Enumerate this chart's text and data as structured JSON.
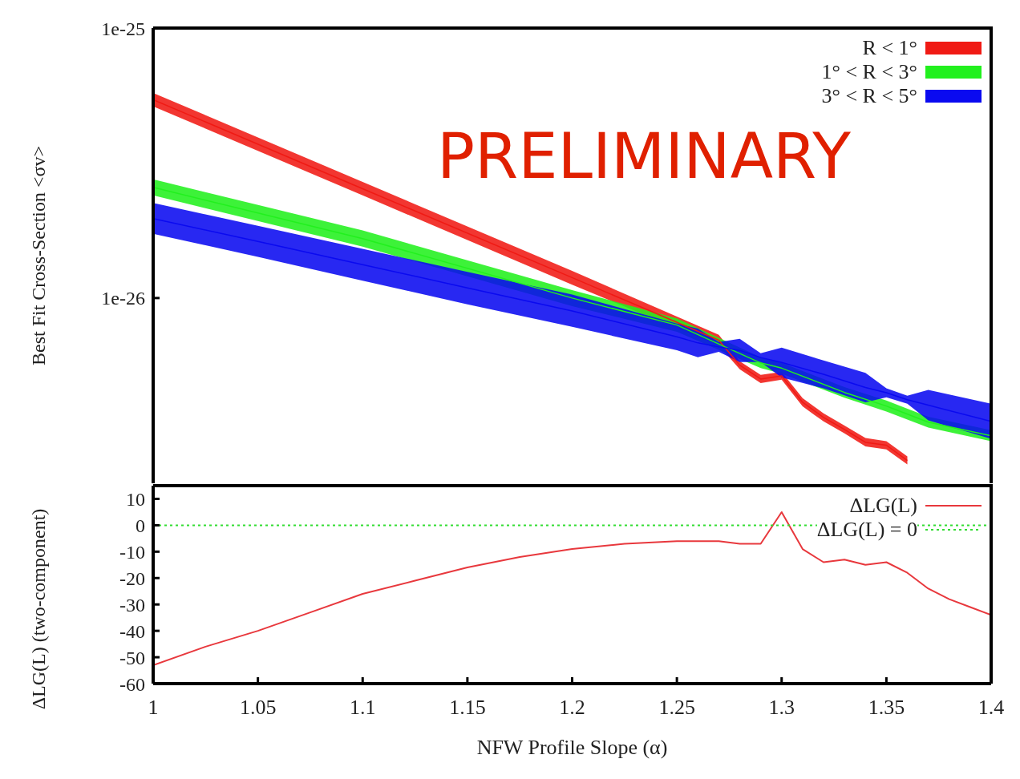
{
  "chart_data": [
    {
      "type": "line",
      "ylabel": "Best Fit Cross-Section <σv>",
      "annotations": [
        "PRELIMINARY"
      ],
      "xlim": [
        1,
        1.4
      ],
      "ylim": [
        2.06e-27,
        1e-25
      ],
      "yticks": [
        {
          "value": 1e-25,
          "label": "1e-25"
        },
        {
          "value": 1e-26,
          "label": "1e-26"
        }
      ],
      "log": "y",
      "tick_labels": "y",
      "legend": "top right",
      "series": [
        {
          "name": "R < 1°",
          "color": "#f01a14",
          "x": [
            1,
            1.1,
            1.2,
            1.27,
            1.28,
            1.29,
            1.3,
            1.31,
            1.32,
            1.33,
            1.34,
            1.35,
            1.36
          ],
          "values": [
            5.43e-26,
            2.54e-26,
            1.19e-26,
            6.98e-27,
            5.64e-27,
            5.01e-27,
            5.15e-27,
            4.11e-27,
            3.61e-27,
            3.26e-27,
            2.92e-27,
            2.85e-27,
            2.5e-27
          ],
          "lower": [
            5.13e-26,
            2.4e-26,
            1.12e-26,
            6.67e-27,
            5.45e-27,
            4.84e-27,
            4.98e-27,
            3.97e-27,
            3.49e-27,
            3.15e-27,
            2.82e-27,
            2.75e-27,
            2.42e-27
          ],
          "upper": [
            5.75e-26,
            2.69e-26,
            1.26e-26,
            7.31e-27,
            5.83e-27,
            5.19e-27,
            5.33e-27,
            4.26e-27,
            3.74e-27,
            3.37e-27,
            3.03e-27,
            2.95e-27,
            2.59e-27
          ]
        },
        {
          "name": "1° < R < 3°",
          "color": "#22f01e",
          "x": [
            1,
            1.1,
            1.2,
            1.25,
            1.29,
            1.3,
            1.33,
            1.35,
            1.37,
            1.4
          ],
          "values": [
            2.57e-26,
            1.66e-26,
            1e-26,
            7.94e-27,
            5.75e-27,
            5.5e-27,
            4.47e-27,
            3.98e-27,
            3.47e-27,
            3.09e-27
          ],
          "lower": [
            2.4e-26,
            1.55e-26,
            9.33e-27,
            7.5e-27,
            5.5e-27,
            5.25e-27,
            4.27e-27,
            3.8e-27,
            3.31e-27,
            2.95e-27
          ],
          "upper": [
            2.75e-26,
            1.78e-26,
            1.07e-26,
            8.41e-27,
            6.03e-27,
            5.75e-27,
            4.68e-27,
            4.17e-27,
            3.63e-27,
            3.24e-27
          ]
        },
        {
          "name": "3° < R < 5°",
          "color": "#0a0af0",
          "x": [
            1,
            1.05,
            1.1,
            1.15,
            1.2,
            1.25,
            1.26,
            1.27,
            1.28,
            1.29,
            1.3,
            1.32,
            1.34,
            1.35,
            1.36,
            1.37,
            1.4
          ],
          "values": [
            1.97e-26,
            1.62e-26,
            1.33e-26,
            1.09e-26,
            8.96e-27,
            7.18e-27,
            6.82e-27,
            6.59e-27,
            6.4e-27,
            6.02e-27,
            5.77e-27,
            5.22e-27,
            4.66e-27,
            4.46e-27,
            4.2e-27,
            4.01e-27,
            3.49e-27
          ],
          "lower": [
            1.73e-26,
            1.42e-26,
            1.16e-26,
            9.48e-27,
            7.82e-27,
            6.41e-27,
            6.03e-27,
            6.32e-27,
            5.79e-27,
            5.79e-27,
            5.08e-27,
            4.63e-27,
            4.11e-27,
            4.29e-27,
            4.06e-27,
            3.52e-27,
            3.01e-27
          ],
          "upper": [
            2.25e-26,
            1.85e-26,
            1.52e-26,
            1.25e-26,
            1.03e-26,
            8.04e-27,
            7.71e-27,
            6.87e-27,
            7.06e-27,
            6.25e-27,
            6.55e-27,
            5.87e-27,
            5.28e-27,
            4.63e-27,
            4.35e-27,
            4.57e-27,
            4.06e-27
          ]
        }
      ]
    },
    {
      "type": "line",
      "xlabel": "NFW Profile Slope (α)",
      "ylabel": "ΔLG(L) (two-component)",
      "xlim": [
        1,
        1.4
      ],
      "xticks": [
        1,
        1.05,
        1.1,
        1.15,
        1.2,
        1.25,
        1.3,
        1.35,
        1.4
      ],
      "ylim": [
        -60,
        15
      ],
      "yticks": [
        10,
        0,
        -10,
        -20,
        -30,
        -40,
        -50,
        -60
      ],
      "legend": "top right",
      "series": [
        {
          "name": "ΔLG(L)",
          "color": "#e8383d",
          "x": [
            1,
            1.025,
            1.05,
            1.075,
            1.1,
            1.125,
            1.15,
            1.175,
            1.2,
            1.225,
            1.25,
            1.27,
            1.28,
            1.29,
            1.3,
            1.31,
            1.32,
            1.33,
            1.34,
            1.35,
            1.36,
            1.37,
            1.38,
            1.39,
            1.4
          ],
          "values": [
            -53,
            -46,
            -40,
            -33,
            -26,
            -21,
            -16,
            -12,
            -9,
            -7,
            -6,
            -6,
            -7,
            -7,
            5,
            -9,
            -14,
            -13,
            -15,
            -14,
            -18,
            -24,
            -28,
            -31,
            -34
          ]
        }
      ],
      "ref_lines": [
        {
          "axis": "y",
          "value": 0,
          "label": "ΔLG(L) = 0",
          "color": "#33dd33",
          "line_style": "dotted"
        }
      ]
    }
  ]
}
